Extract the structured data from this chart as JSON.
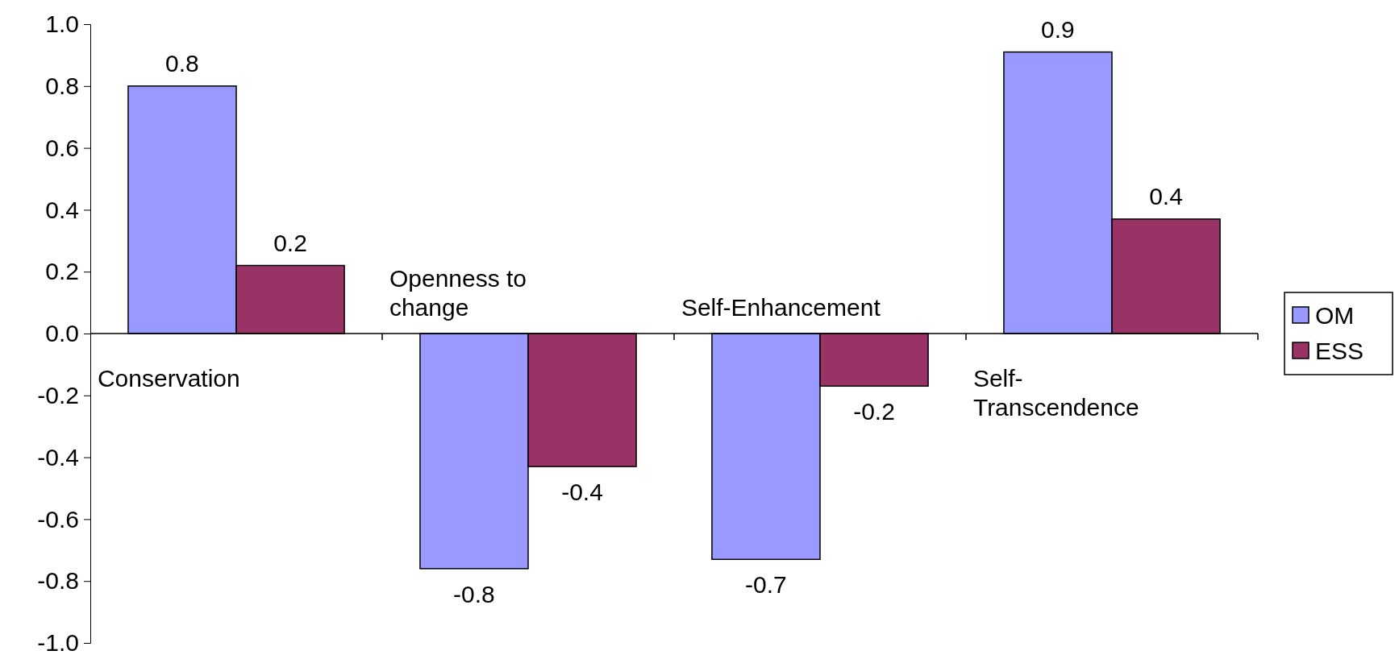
{
  "chart_data": {
    "type": "bar",
    "categories": [
      "Conservation",
      "Openness to change",
      "Self-Enhancement",
      "Self-Transcendence"
    ],
    "series": [
      {
        "name": "OM",
        "color": "#9999ff",
        "values": [
          0.8,
          -0.76,
          -0.73,
          0.91
        ],
        "value_labels": [
          "0.8",
          "-0.8",
          "-0.7",
          "0.9"
        ]
      },
      {
        "name": "ESS",
        "color": "#993366",
        "values": [
          0.22,
          -0.43,
          -0.17,
          0.37
        ],
        "value_labels": [
          "0.2",
          "-0.4",
          "-0.2",
          "0.4"
        ]
      }
    ],
    "ylim": [
      -1,
      1
    ],
    "yticks": [
      {
        "value": 1,
        "label": "1.0"
      },
      {
        "value": 0.8,
        "label": "0.8"
      },
      {
        "value": 0.6,
        "label": "0.6"
      },
      {
        "value": 0.4,
        "label": "0.4"
      },
      {
        "value": 0.2,
        "label": "0.2"
      },
      {
        "value": 0,
        "label": "0.0"
      },
      {
        "value": -0.2,
        "label": "-0.2"
      },
      {
        "value": -0.4,
        "label": "-0.4"
      },
      {
        "value": -0.6,
        "label": "-0.6"
      },
      {
        "value": -0.8,
        "label": "-0.8"
      },
      {
        "value": -1,
        "label": "-1.0"
      }
    ],
    "grid": false,
    "legend": "right"
  }
}
